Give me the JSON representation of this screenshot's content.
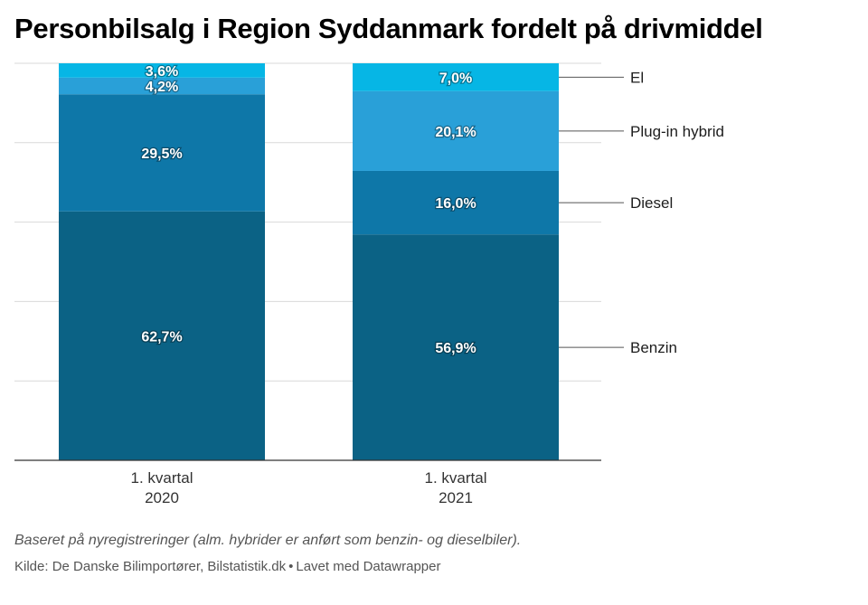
{
  "title": "Personbilsalg i Region Syddanmark fordelt på drivmiddel",
  "note": "Baseret på nyregistreringer (alm. hybrider er anført som benzin- og dieselbiler).",
  "source": {
    "text": "Kilde: De Danske Bilimportører, Bilstatistik.dk",
    "separator": "•",
    "credit": "Lavet med Datawrapper"
  },
  "chart_data": {
    "type": "bar",
    "stacked": true,
    "categories": [
      {
        "line1": "1. kvartal",
        "line2": "2020"
      },
      {
        "line1": "1. kvartal",
        "line2": "2021"
      }
    ],
    "series": [
      {
        "name": "Benzin",
        "color": "#0b6285",
        "values": [
          62.7,
          56.9
        ],
        "labels": [
          "62,7%",
          "56,9%"
        ]
      },
      {
        "name": "Diesel",
        "color": "#0e77a8",
        "values": [
          29.5,
          16.0
        ],
        "labels": [
          "29,5%",
          "16,0%"
        ]
      },
      {
        "name": "Plug-in hybrid",
        "color": "#29a0d8",
        "values": [
          4.2,
          20.1
        ],
        "labels": [
          "4,2%",
          "20,1%"
        ]
      },
      {
        "name": "El",
        "color": "#06b6e5",
        "values": [
          3.6,
          7.0
        ],
        "labels": [
          "3,6%",
          "7,0%"
        ]
      }
    ],
    "ylim": [
      0,
      100
    ],
    "grid": true,
    "legend": "right, labels linked to 2021 bar segments"
  }
}
